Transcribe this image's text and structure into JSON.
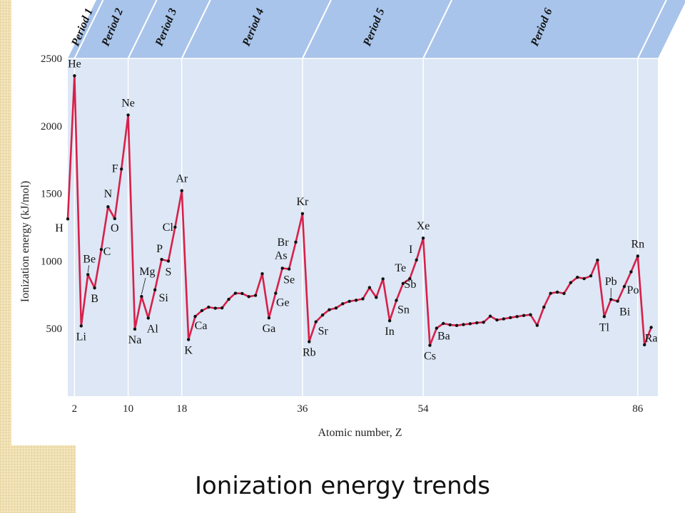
{
  "slide": {
    "title": "Ionization energy trends"
  },
  "colors": {
    "line": "#d6204a",
    "plot_bg": "#dde7f5",
    "band": "#a8c4ea",
    "band_edge": "#ffffff",
    "marker": "#111111"
  },
  "chart_data": {
    "type": "line",
    "xlabel": "Atomic number, Z",
    "ylabel": "Ionization energy (kJ/mol)",
    "xlim": [
      1,
      89
    ],
    "ylim": [
      0,
      2500
    ],
    "x_ticks": [
      2,
      10,
      18,
      36,
      54,
      86
    ],
    "y_ticks": [
      500,
      1000,
      1500,
      2000,
      2500
    ],
    "period_boundaries": [
      2,
      10,
      18,
      36,
      54,
      86
    ],
    "periods": [
      "Period 1",
      "Period 2",
      "Period 3",
      "Period 4",
      "Period 5",
      "Period 6"
    ],
    "series": [
      {
        "x": [
          1,
          2,
          3,
          4,
          5,
          6,
          7,
          8,
          9,
          10,
          11,
          12,
          13,
          14,
          15,
          16,
          17,
          18,
          19,
          20,
          21,
          22,
          23,
          24,
          25,
          26,
          27,
          28,
          29,
          30,
          31,
          32,
          33,
          34,
          35,
          36,
          37,
          38,
          39,
          40,
          41,
          42,
          43,
          44,
          45,
          46,
          47,
          48,
          49,
          50,
          51,
          52,
          53,
          54,
          55,
          56,
          57,
          58,
          59,
          60,
          61,
          62,
          63,
          64,
          65,
          66,
          67,
          68,
          69,
          70,
          71,
          72,
          73,
          74,
          75,
          76,
          77,
          78,
          79,
          80,
          81,
          82,
          83,
          84,
          85,
          86,
          87,
          88
        ],
        "y": [
          1312,
          2372,
          520,
          900,
          801,
          1086,
          1402,
          1314,
          1681,
          2081,
          496,
          738,
          578,
          787,
          1012,
          1000,
          1251,
          1521,
          419,
          590,
          633,
          659,
          651,
          653,
          717,
          762,
          760,
          737,
          746,
          906,
          579,
          762,
          947,
          941,
          1140,
          1351,
          403,
          550,
          600,
          640,
          652,
          684,
          702,
          710,
          720,
          804,
          731,
          868,
          558,
          709,
          834,
          869,
          1008,
          1170,
          376,
          503,
          538,
          528,
          523,
          530,
          536,
          543,
          547,
          592,
          564,
          572,
          581,
          589,
          597,
          603,
          524,
          659,
          761,
          770,
          760,
          840,
          880,
          870,
          890,
          1007,
          589,
          716,
          703,
          812,
          920,
          1037,
          380,
          509
        ]
      }
    ],
    "labels": [
      {
        "text": "H",
        "z": 1
      },
      {
        "text": "He",
        "z": 2
      },
      {
        "text": "Li",
        "z": 3
      },
      {
        "text": "Be",
        "z": 4
      },
      {
        "text": "B",
        "z": 5
      },
      {
        "text": "C",
        "z": 6
      },
      {
        "text": "N",
        "z": 7
      },
      {
        "text": "O",
        "z": 8
      },
      {
        "text": "F",
        "z": 9
      },
      {
        "text": "Ne",
        "z": 10
      },
      {
        "text": "Na",
        "z": 11
      },
      {
        "text": "Mg",
        "z": 12
      },
      {
        "text": "Al",
        "z": 13
      },
      {
        "text": "Si",
        "z": 14
      },
      {
        "text": "P",
        "z": 15
      },
      {
        "text": "S",
        "z": 16
      },
      {
        "text": "Cl",
        "z": 17
      },
      {
        "text": "Ar",
        "z": 18
      },
      {
        "text": "K",
        "z": 19
      },
      {
        "text": "Ca",
        "z": 20
      },
      {
        "text": "Ga",
        "z": 31
      },
      {
        "text": "Ge",
        "z": 32
      },
      {
        "text": "As",
        "z": 33
      },
      {
        "text": "Se",
        "z": 34
      },
      {
        "text": "Br",
        "z": 35
      },
      {
        "text": "Kr",
        "z": 36
      },
      {
        "text": "Rb",
        "z": 37
      },
      {
        "text": "Sr",
        "z": 38
      },
      {
        "text": "In",
        "z": 49
      },
      {
        "text": "Sn",
        "z": 50
      },
      {
        "text": "Sb",
        "z": 51
      },
      {
        "text": "Te",
        "z": 52
      },
      {
        "text": "I",
        "z": 53
      },
      {
        "text": "Xe",
        "z": 54
      },
      {
        "text": "Cs",
        "z": 55
      },
      {
        "text": "Ba",
        "z": 56
      },
      {
        "text": "Tl",
        "z": 81
      },
      {
        "text": "Pb",
        "z": 82
      },
      {
        "text": "Bi",
        "z": 83
      },
      {
        "text": "Po",
        "z": 84
      },
      {
        "text": "Rn",
        "z": 86
      },
      {
        "text": "Ra",
        "z": 88
      }
    ]
  }
}
